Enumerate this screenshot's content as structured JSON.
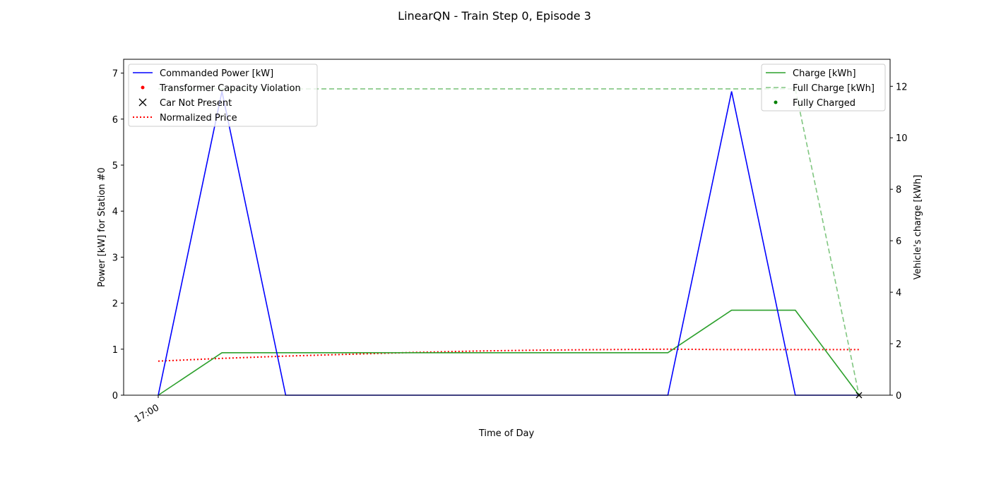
{
  "chart_data": {
    "type": "line",
    "title": "LinearQN - Train Step 0, Episode 3",
    "xlabel": "Time of Day",
    "x_tick_labels": [
      "17:00"
    ],
    "x": [
      0,
      1,
      2,
      3,
      4,
      5,
      6,
      7,
      8,
      9,
      10,
      11
    ],
    "y_left": {
      "label": "Power [kW] for Station #0",
      "lim": [
        0,
        7.3
      ],
      "ticks": [
        0,
        1,
        2,
        3,
        4,
        5,
        6,
        7
      ]
    },
    "y_right": {
      "label": "Vehicle's charge [kWh]",
      "lim": [
        0,
        13.05
      ],
      "ticks": [
        0,
        2,
        4,
        6,
        8,
        10,
        12
      ]
    },
    "series": [
      {
        "name": "Commanded Power [kW]",
        "axis": "left",
        "color": "#0000ff",
        "style": "solid",
        "x": [
          0,
          1,
          2,
          3,
          4,
          5,
          6,
          7,
          8,
          9,
          10,
          11
        ],
        "values": [
          0,
          6.6,
          0,
          0,
          0,
          0,
          0,
          0,
          0,
          6.6,
          0,
          0
        ]
      },
      {
        "name": "Normalized Price",
        "axis": "left",
        "color": "#ff0000",
        "style": "dotted",
        "x": [
          0,
          1,
          2,
          3,
          4,
          5,
          6,
          7,
          8,
          9,
          10,
          11
        ],
        "values": [
          0.74,
          0.8,
          0.85,
          0.89,
          0.93,
          0.96,
          0.98,
          0.99,
          1.0,
          0.99,
          0.99,
          0.99
        ]
      },
      {
        "name": "Charge [kWh]",
        "axis": "right",
        "color": "#2ca02c",
        "style": "solid",
        "x": [
          0,
          1,
          2,
          3,
          4,
          5,
          6,
          7,
          8,
          9,
          10,
          11
        ],
        "values": [
          0,
          1.65,
          1.65,
          1.65,
          1.65,
          1.65,
          1.65,
          1.65,
          1.65,
          3.3,
          3.3,
          0
        ]
      },
      {
        "name": "Full Charge [kWh]",
        "axis": "right",
        "color": "#2ca02c",
        "style": "dashed",
        "x": [
          0,
          1,
          2,
          3,
          4,
          5,
          6,
          7,
          8,
          9,
          10,
          11
        ],
        "values": [
          11.9,
          11.9,
          11.9,
          11.9,
          11.9,
          11.9,
          11.9,
          11.9,
          11.9,
          11.9,
          11.9,
          0
        ]
      }
    ],
    "markers": [
      {
        "name": "Transformer Capacity Violation",
        "axis": "left",
        "color": "#ff0000",
        "symbol": "dot",
        "points": []
      },
      {
        "name": "Car Not Present",
        "axis": "left",
        "color": "#000000",
        "symbol": "x",
        "points": [
          [
            11,
            0
          ]
        ]
      },
      {
        "name": "Fully Charged",
        "axis": "right",
        "color": "#008000",
        "symbol": "dot",
        "points": []
      }
    ],
    "legend_left": {
      "placement": "upper-left",
      "entries": [
        "Commanded Power [kW]",
        "Transformer Capacity Violation",
        "Car Not Present",
        "Normalized Price"
      ]
    },
    "legend_right": {
      "placement": "upper-right",
      "entries": [
        "Charge [kWh]",
        "Full Charge [kWh]",
        "Fully Charged"
      ]
    },
    "grid": false
  }
}
